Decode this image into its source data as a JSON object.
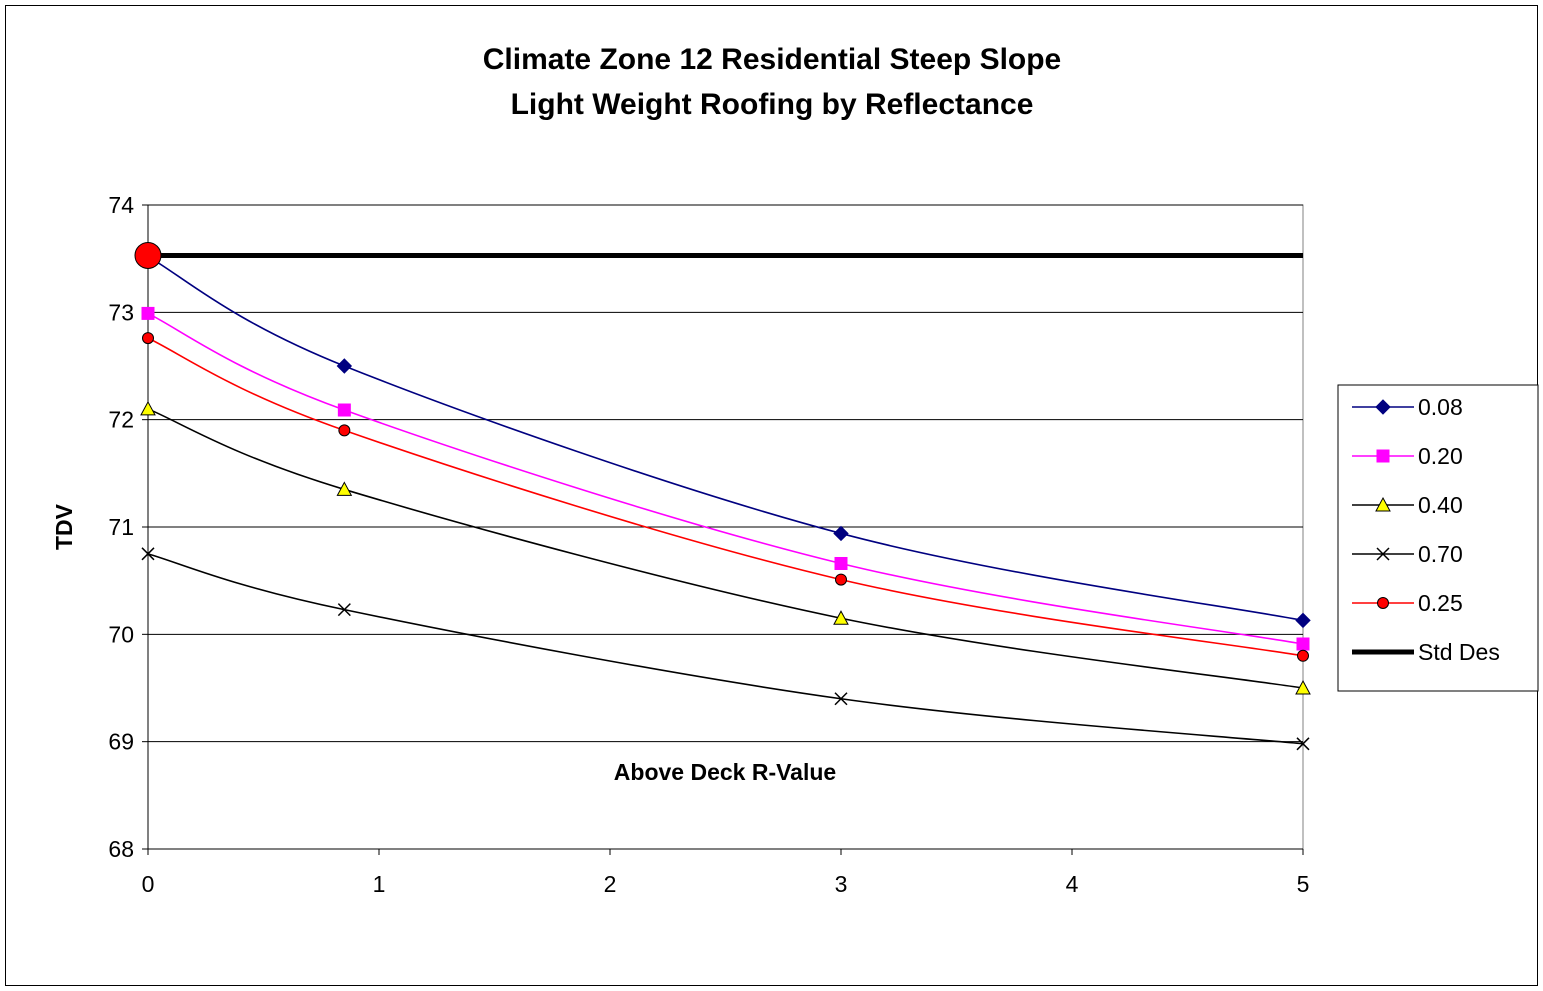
{
  "chart_data": {
    "type": "line",
    "title": [
      "Climate Zone 12 Residential Steep Slope",
      "Light Weight Roofing by Reflectance"
    ],
    "xlabel": "Above Deck R-Value",
    "ylabel": "TDV",
    "xlim": [
      0,
      5
    ],
    "ylim": [
      68,
      74
    ],
    "xticks": [
      "0",
      "1",
      "2",
      "3",
      "4",
      "5"
    ],
    "yticks": [
      "68",
      "69",
      "70",
      "71",
      "72",
      "73",
      "74"
    ],
    "grid": "horizontal",
    "legend_position": "right",
    "series": [
      {
        "name": "0.08",
        "color": "#000080",
        "marker": "diamond",
        "x": [
          0,
          0.85,
          3,
          5
        ],
        "y": [
          73.52,
          72.5,
          70.94,
          70.13
        ]
      },
      {
        "name": "0.20",
        "color": "#ff00ff",
        "marker": "square",
        "x": [
          0,
          0.85,
          3,
          5
        ],
        "y": [
          72.99,
          72.09,
          70.66,
          69.91
        ]
      },
      {
        "name": "0.40",
        "color": "#000000",
        "marker": "triangle",
        "marker_fill": "#ffff00",
        "x": [
          0,
          0.85,
          3,
          5
        ],
        "y": [
          72.1,
          71.35,
          70.15,
          69.5
        ]
      },
      {
        "name": "0.70",
        "color": "#000000",
        "marker": "x",
        "x": [
          0,
          0.85,
          3,
          5
        ],
        "y": [
          70.75,
          70.23,
          69.4,
          68.98
        ]
      },
      {
        "name": "0.25",
        "color": "#ff0000",
        "marker": "circle",
        "marker_fill": "#ff0000",
        "x": [
          0,
          0.85,
          3,
          5
        ],
        "y": [
          72.76,
          71.9,
          70.51,
          69.8
        ]
      },
      {
        "name": "Std Des",
        "color": "#000000",
        "marker": "none",
        "line_width": "thick",
        "x": [
          0,
          5
        ],
        "y": [
          73.53,
          73.53
        ],
        "highlight_point": {
          "x": 0,
          "y": 73.53,
          "color": "#ff0000"
        }
      }
    ]
  }
}
